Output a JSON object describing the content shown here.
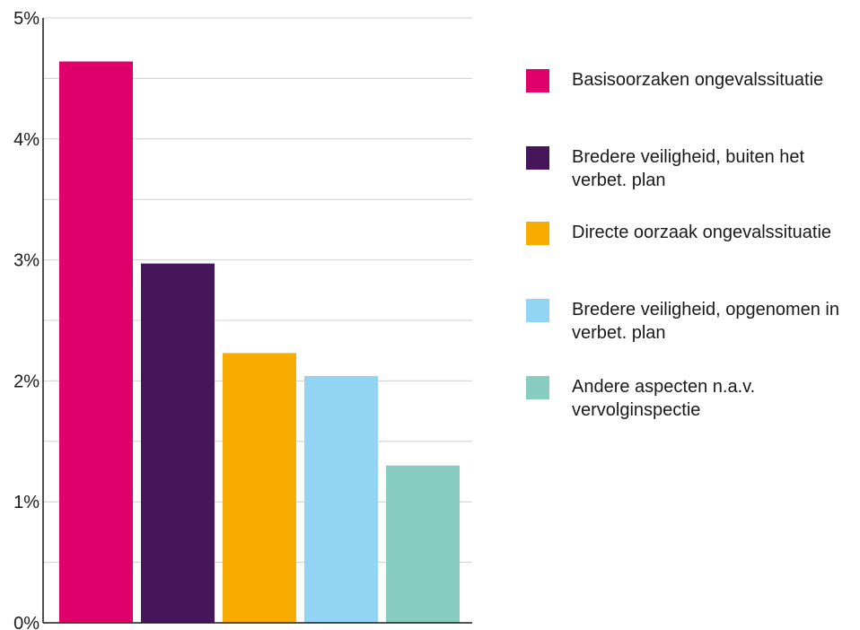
{
  "chart_data": {
    "type": "bar",
    "title": "",
    "xlabel": "",
    "ylabel": "",
    "ylim": [
      0,
      5
    ],
    "y_ticks": [
      "0%",
      "1%",
      "2%",
      "3%",
      "4%",
      "5%"
    ],
    "grid": true,
    "legend_position": "right",
    "categories": [
      "Basisoorzaken ongevalssituatie",
      "Bredere veiligheid, buiten het verbet. plan",
      "Directe oorzaak ongevalssituatie",
      "Bredere veiligheid, opgenomen in verbet. plan",
      "Andere aspecten n.a.v. vervolginspectie"
    ],
    "values": [
      4.64,
      2.97,
      2.23,
      2.04,
      1.3
    ],
    "colors": [
      "#e0006b",
      "#46165a",
      "#f8ac00",
      "#93d3f4",
      "#89ccc0"
    ]
  }
}
